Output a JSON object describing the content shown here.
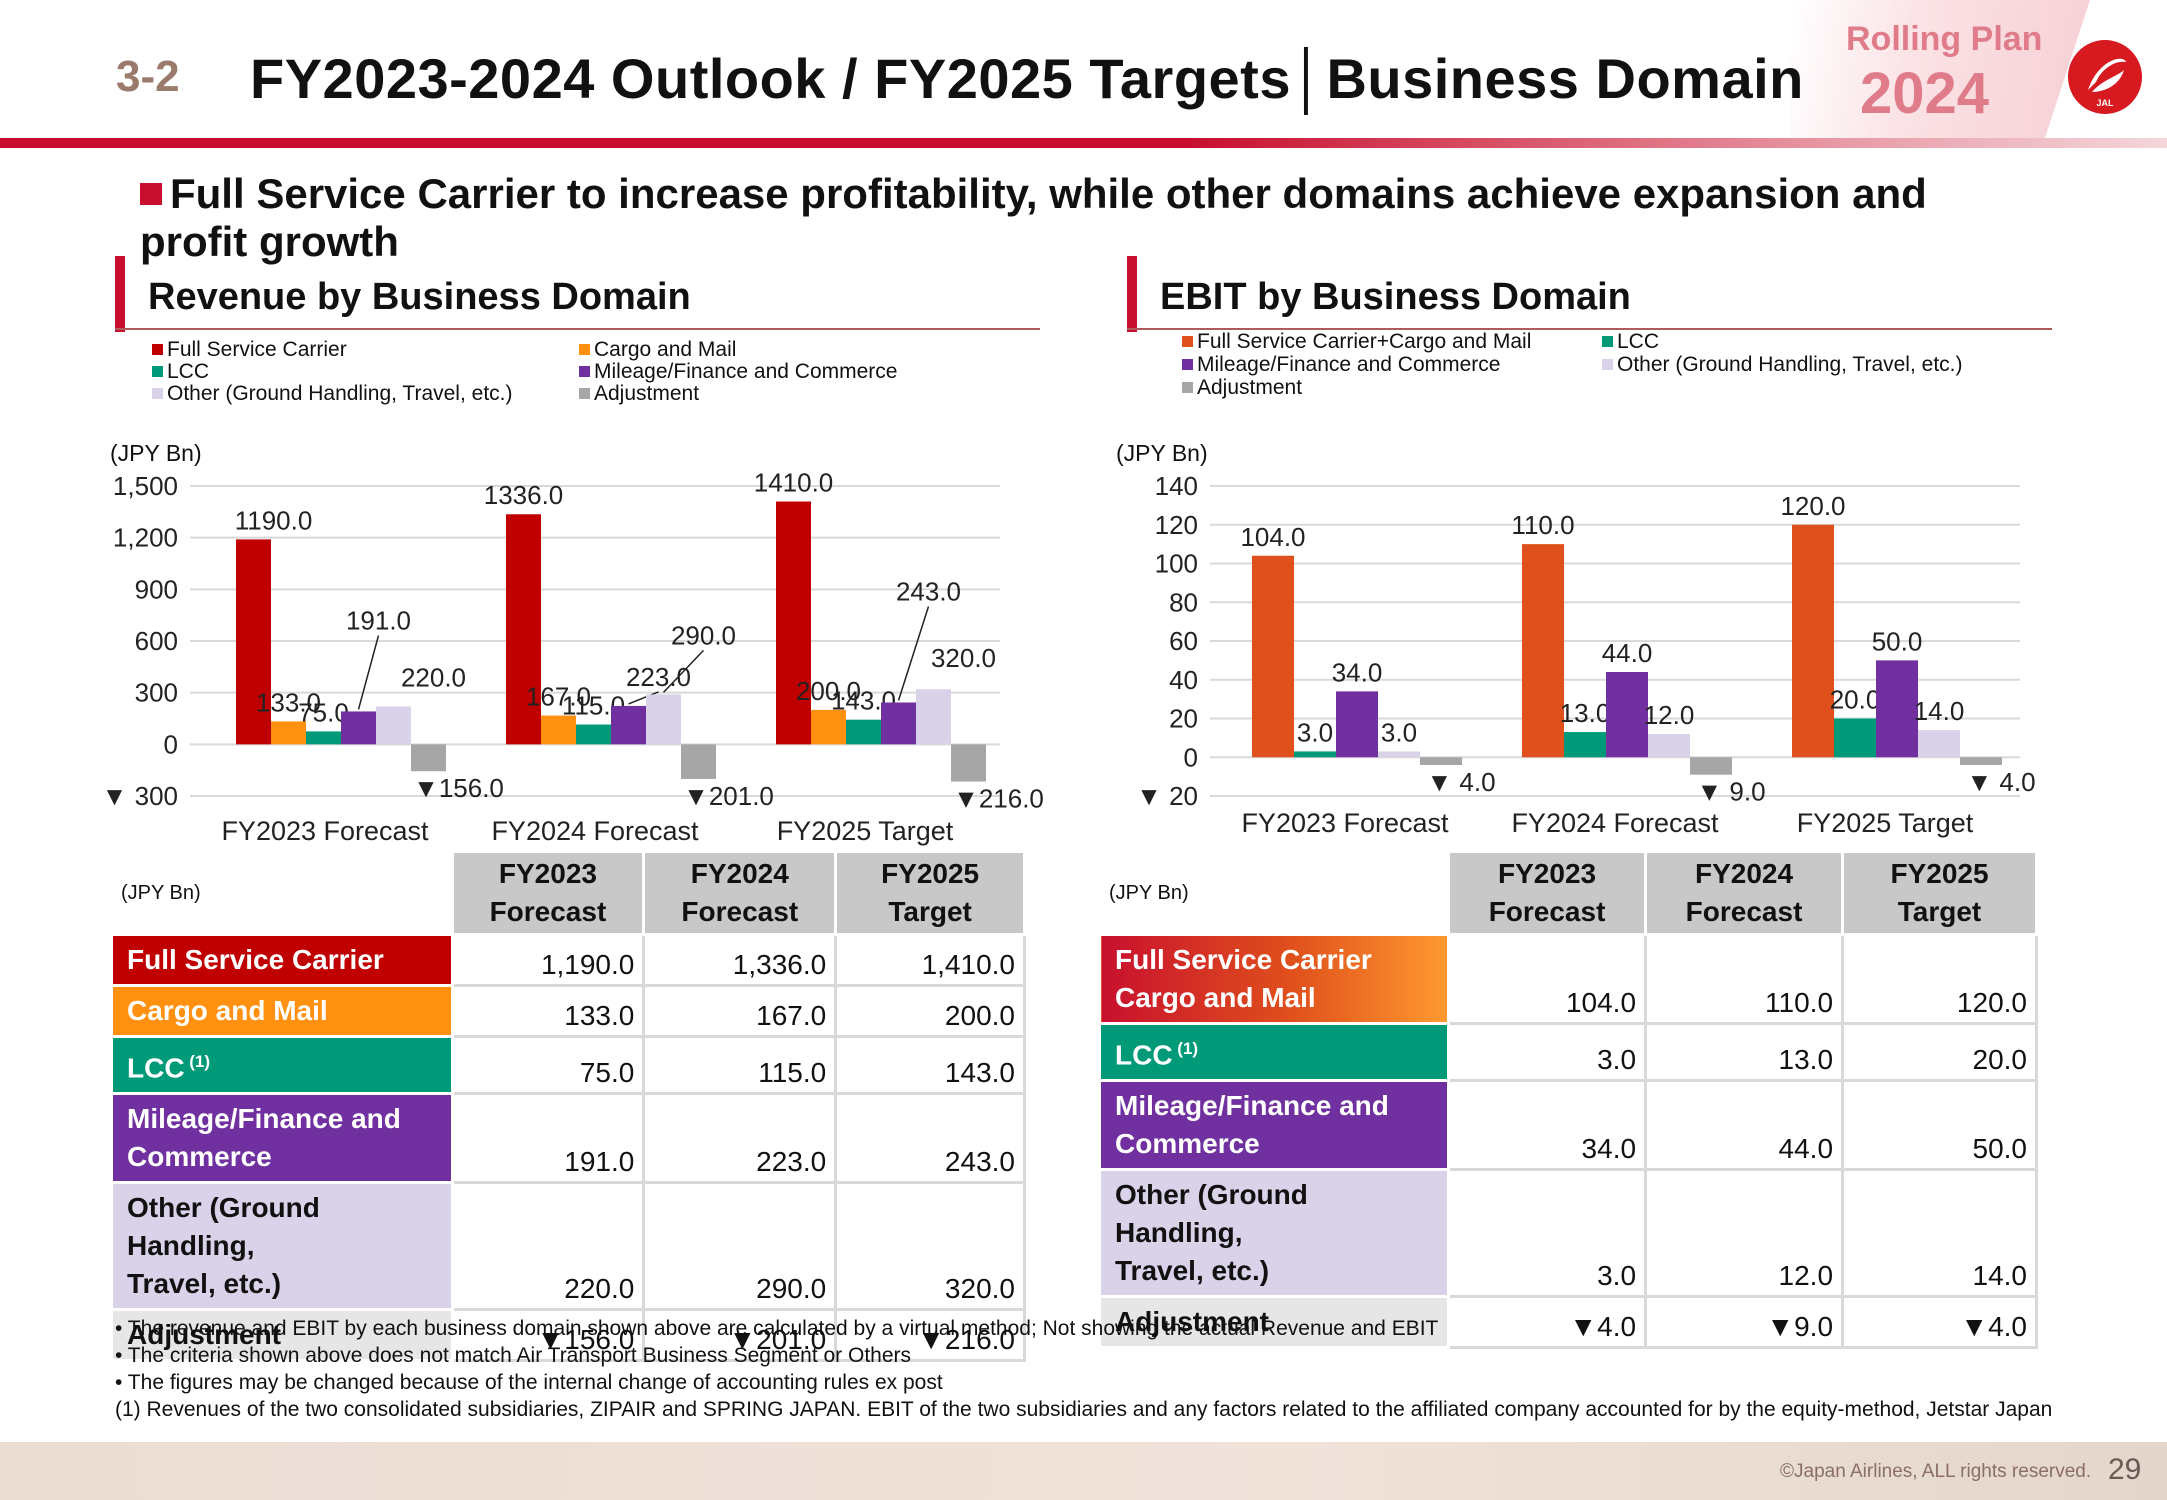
{
  "header": {
    "section_number": "3-2",
    "title": "FY2023-2024 Outlook / FY2025 Targets│Business Domain",
    "rolling_plan_label": "Rolling Plan",
    "rolling_plan_year": "2024",
    "logo_text": "JAL"
  },
  "headline": "Full Service Carrier to increase profitability, while other domains achieve expansion and profit growth",
  "colors": {
    "brand_red": "#c8102e",
    "fsc": "#c00000",
    "cargo": "#ff9010",
    "lcc": "#009a78",
    "mileage": "#7030a0",
    "other": "#d9d2e9",
    "adjustment": "#a6a6a6"
  },
  "revenue": {
    "panel_title": "Revenue by Business Domain",
    "legend": [
      {
        "label": "Full Service Carrier",
        "color": "#c00000"
      },
      {
        "label": "Cargo and Mail",
        "color": "#ff9010"
      },
      {
        "label": "LCC",
        "color": "#009a78"
      },
      {
        "label": "Mileage/Finance and Commerce",
        "color": "#7030a0"
      },
      {
        "label": "Other (Ground Handling, Travel, etc.)",
        "color": "#d9d2e9"
      },
      {
        "label": "Adjustment",
        "color": "#a6a6a6"
      }
    ],
    "unit": "(JPY Bn)",
    "table": {
      "unit": "(JPY Bn)",
      "headers": [
        [
          "FY2023",
          "Forecast"
        ],
        [
          "FY2024",
          "Forecast"
        ],
        [
          "FY2025",
          "Target"
        ]
      ],
      "rows": [
        {
          "label": [
            "Full Service Carrier"
          ],
          "sup": "",
          "values": [
            "1,190.0",
            "1,336.0",
            "1,410.0"
          ],
          "color": "#c00000",
          "text": "#ffffff"
        },
        {
          "label": [
            "Cargo and Mail"
          ],
          "sup": "",
          "values": [
            "133.0",
            "167.0",
            "200.0"
          ],
          "color": "#ff9010",
          "text": "#ffffff"
        },
        {
          "label": [
            "LCC"
          ],
          "sup": "(1)",
          "values": [
            "75.0",
            "115.0",
            "143.0"
          ],
          "color": "#009a78",
          "text": "#ffffff"
        },
        {
          "label": [
            "Mileage/Finance and",
            "Commerce"
          ],
          "sup": "",
          "values": [
            "191.0",
            "223.0",
            "243.0"
          ],
          "color": "#7030a0",
          "text": "#ffffff"
        },
        {
          "label": [
            "Other (Ground Handling,",
            "Travel, etc.)"
          ],
          "sup": "",
          "values": [
            "220.0",
            "290.0",
            "320.0"
          ],
          "color": "#d9d2e9",
          "text": "#111111"
        },
        {
          "label": [
            "Adjustment"
          ],
          "sup": "",
          "values": [
            "▼156.0",
            "▼201.0",
            "▼216.0"
          ],
          "color": "#e6e6e6",
          "text": "#111111"
        }
      ]
    }
  },
  "ebit": {
    "panel_title": "EBIT by Business Domain",
    "legend": [
      {
        "label": "Full Service Carrier+Cargo and Mail",
        "color": "#e0501c"
      },
      {
        "label": "LCC",
        "color": "#009a78"
      },
      {
        "label": "Mileage/Finance and Commerce",
        "color": "#7030a0"
      },
      {
        "label": "Other (Ground Handling, Travel, etc.)",
        "color": "#d9d2e9"
      },
      {
        "label": "Adjustment",
        "color": "#a6a6a6"
      }
    ],
    "unit": "(JPY Bn)",
    "table": {
      "unit": "(JPY Bn)",
      "headers": [
        [
          "FY2023",
          "Forecast"
        ],
        [
          "FY2024",
          "Forecast"
        ],
        [
          "FY2025",
          "Target"
        ]
      ],
      "rows": [
        {
          "label": [
            "Full Service Carrier",
            "Cargo and Mail"
          ],
          "sup": "",
          "values": [
            "104.0",
            "110.0",
            "120.0"
          ],
          "color": "#d83a10",
          "text": "#ffffff",
          "gradient": true
        },
        {
          "label": [
            "LCC"
          ],
          "sup": "(1)",
          "values": [
            "3.0",
            "13.0",
            "20.0"
          ],
          "color": "#009a78",
          "text": "#ffffff"
        },
        {
          "label": [
            "Mileage/Finance and",
            "Commerce"
          ],
          "sup": "",
          "values": [
            "34.0",
            "44.0",
            "50.0"
          ],
          "color": "#7030a0",
          "text": "#ffffff"
        },
        {
          "label": [
            "Other (Ground Handling,",
            "Travel, etc.)"
          ],
          "sup": "",
          "values": [
            "3.0",
            "12.0",
            "14.0"
          ],
          "color": "#d9d2e9",
          "text": "#111111"
        },
        {
          "label": [
            "Adjustment"
          ],
          "sup": "",
          "values": [
            "▼4.0",
            "▼9.0",
            "▼4.0"
          ],
          "color": "#e6e6e6",
          "text": "#111111"
        }
      ]
    }
  },
  "chart_data": [
    {
      "type": "bar",
      "title": "Revenue by Business Domain",
      "unit": "(JPY Bn)",
      "categories": [
        "FY2023 Forecast",
        "FY2024 Forecast",
        "FY2025 Target"
      ],
      "ylim": [
        -300,
        1500
      ],
      "yticks": [
        -300,
        0,
        300,
        600,
        900,
        1200,
        1500
      ],
      "ytick_labels": [
        "▼ 300",
        "0",
        "300",
        "600",
        "900",
        "1,200",
        "1,500"
      ],
      "grid": true,
      "series": [
        {
          "name": "Full Service Carrier",
          "values": [
            1190.0,
            1336.0,
            1410.0
          ],
          "labels": [
            "1190.0",
            "1336.0",
            "1410.0"
          ],
          "color": "#c00000"
        },
        {
          "name": "Cargo and Mail",
          "values": [
            133.0,
            167.0,
            200.0
          ],
          "labels": [
            "133.0",
            "167.0",
            "200.0"
          ],
          "color": "#ff9010"
        },
        {
          "name": "LCC",
          "values": [
            75.0,
            115.0,
            143.0
          ],
          "labels": [
            "75.0",
            "115.0",
            "143.0"
          ],
          "color": "#009a78"
        },
        {
          "name": "Mileage/Finance and Commerce",
          "values": [
            191.0,
            223.0,
            243.0
          ],
          "labels": [
            "191.0",
            "223.0",
            "243.0"
          ],
          "color": "#7030a0"
        },
        {
          "name": "Other (Ground Handling, Travel, etc.)",
          "values": [
            220.0,
            290.0,
            320.0
          ],
          "labels": [
            "220.0",
            "290.0",
            "320.0"
          ],
          "color": "#d9d2e9"
        },
        {
          "name": "Adjustment",
          "values": [
            -156.0,
            -201.0,
            -216.0
          ],
          "labels": [
            "▼156.0",
            "▼201.0",
            "▼216.0"
          ],
          "color": "#a6a6a6"
        }
      ]
    },
    {
      "type": "bar",
      "title": "EBIT by Business Domain",
      "unit": "(JPY Bn)",
      "categories": [
        "FY2023 Forecast",
        "FY2024 Forecast",
        "FY2025 Target"
      ],
      "ylim": [
        -20,
        140
      ],
      "yticks": [
        -20,
        0,
        20,
        40,
        60,
        80,
        100,
        120,
        140
      ],
      "ytick_labels": [
        "▼ 20",
        "0",
        "20",
        "40",
        "60",
        "80",
        "100",
        "120",
        "140"
      ],
      "grid": true,
      "series": [
        {
          "name": "Full Service Carrier+Cargo and Mail",
          "values": [
            104.0,
            110.0,
            120.0
          ],
          "labels": [
            "104.0",
            "110.0",
            "120.0"
          ],
          "color": "#e0501c"
        },
        {
          "name": "LCC",
          "values": [
            3.0,
            13.0,
            20.0
          ],
          "labels": [
            "3.0",
            "13.0",
            "20.0"
          ],
          "color": "#009a78"
        },
        {
          "name": "Mileage/Finance and Commerce",
          "values": [
            34.0,
            44.0,
            50.0
          ],
          "labels": [
            "34.0",
            "44.0",
            "50.0"
          ],
          "color": "#7030a0"
        },
        {
          "name": "Other (Ground Handling, Travel, etc.)",
          "values": [
            3.0,
            12.0,
            14.0
          ],
          "labels": [
            "3.0",
            "12.0",
            "14.0"
          ],
          "color": "#d9d2e9"
        },
        {
          "name": "Adjustment",
          "values": [
            -4.0,
            -9.0,
            -4.0
          ],
          "labels": [
            "▼ 4.0",
            "▼ 9.0",
            "▼ 4.0"
          ],
          "color": "#a6a6a6"
        }
      ]
    }
  ],
  "footnotes": [
    "• The revenue and EBIT by each business domain shown above are calculated by a virtual method; Not showing the actual Revenue and EBIT",
    "• The criteria shown above does not match Air Transport Business Segment or Others",
    "• The figures may be changed because of the internal change of accounting rules ex post",
    "(1) Revenues of the two consolidated subsidiaries, ZIPAIR and SPRING JAPAN. EBIT of the two subsidiaries and any factors related to the affiliated company accounted for by the equity-method, Jetstar Japan"
  ],
  "footer": {
    "copyright": "©Japan Airlines, ALL rights reserved.",
    "page_number": "29"
  }
}
